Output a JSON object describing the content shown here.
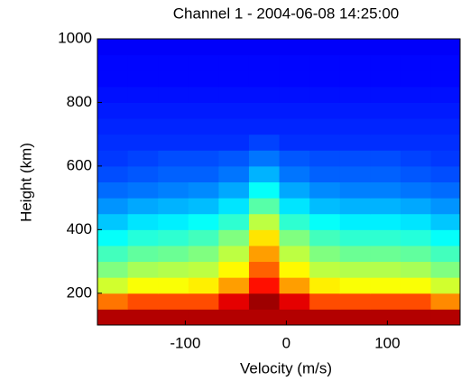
{
  "chart_data": {
    "type": "heatmap",
    "title": "Channel 1 - 2004-06-08 14:25:00",
    "x_label": "Velocity (m/s)",
    "y_label": "Height (km)",
    "xlim": [
      -187,
      172
    ],
    "ylim": [
      100,
      1000
    ],
    "xticks": [
      -100,
      0,
      100
    ],
    "yticks": [
      200,
      400,
      600,
      800,
      1000
    ],
    "colormap": "jet",
    "zlim": [
      0,
      1
    ],
    "x_bins": [
      -187,
      -157,
      -127,
      -97,
      -67,
      -37,
      -7,
      23,
      53,
      83,
      113,
      143,
      172
    ],
    "y_bins": [
      100,
      150,
      200,
      250,
      300,
      350,
      400,
      450,
      500,
      550,
      600,
      650,
      700,
      750,
      800,
      850,
      900,
      950,
      1000
    ],
    "z": [
      [
        0.95,
        0.95,
        0.95,
        0.95,
        0.95,
        0.95,
        0.95,
        0.95,
        0.95,
        0.95,
        0.95,
        0.95
      ],
      [
        0.76,
        0.8,
        0.8,
        0.8,
        0.9,
        0.97,
        0.9,
        0.8,
        0.8,
        0.8,
        0.8,
        0.74
      ],
      [
        0.58,
        0.62,
        0.62,
        0.64,
        0.72,
        0.86,
        0.72,
        0.64,
        0.62,
        0.62,
        0.62,
        0.58
      ],
      [
        0.5,
        0.54,
        0.55,
        0.56,
        0.63,
        0.78,
        0.63,
        0.56,
        0.55,
        0.55,
        0.54,
        0.5
      ],
      [
        0.44,
        0.47,
        0.48,
        0.5,
        0.56,
        0.72,
        0.56,
        0.5,
        0.48,
        0.48,
        0.47,
        0.44
      ],
      [
        0.38,
        0.41,
        0.42,
        0.44,
        0.5,
        0.65,
        0.5,
        0.44,
        0.42,
        0.42,
        0.41,
        0.38
      ],
      [
        0.32,
        0.35,
        0.36,
        0.38,
        0.42,
        0.56,
        0.42,
        0.38,
        0.36,
        0.36,
        0.35,
        0.32
      ],
      [
        0.27,
        0.29,
        0.3,
        0.31,
        0.35,
        0.46,
        0.35,
        0.31,
        0.3,
        0.3,
        0.29,
        0.27
      ],
      [
        0.23,
        0.24,
        0.25,
        0.26,
        0.29,
        0.38,
        0.29,
        0.26,
        0.25,
        0.25,
        0.24,
        0.23
      ],
      [
        0.2,
        0.21,
        0.22,
        0.22,
        0.24,
        0.3,
        0.24,
        0.22,
        0.22,
        0.22,
        0.21,
        0.2
      ],
      [
        0.18,
        0.19,
        0.2,
        0.2,
        0.21,
        0.24,
        0.21,
        0.2,
        0.2,
        0.2,
        0.19,
        0.18
      ],
      [
        0.17,
        0.17,
        0.17,
        0.17,
        0.17,
        0.19,
        0.17,
        0.17,
        0.17,
        0.17,
        0.17,
        0.17
      ],
      [
        0.16,
        0.16,
        0.16,
        0.16,
        0.16,
        0.16,
        0.16,
        0.16,
        0.16,
        0.16,
        0.16,
        0.16
      ],
      [
        0.15,
        0.15,
        0.15,
        0.15,
        0.15,
        0.15,
        0.15,
        0.15,
        0.15,
        0.15,
        0.15,
        0.15
      ],
      [
        0.14,
        0.14,
        0.14,
        0.14,
        0.14,
        0.14,
        0.14,
        0.14,
        0.14,
        0.14,
        0.14,
        0.14
      ],
      [
        0.13,
        0.13,
        0.13,
        0.13,
        0.13,
        0.13,
        0.13,
        0.13,
        0.13,
        0.13,
        0.13,
        0.13
      ],
      [
        0.13,
        0.13,
        0.13,
        0.13,
        0.13,
        0.13,
        0.13,
        0.13,
        0.13,
        0.13,
        0.13,
        0.13
      ],
      [
        0.12,
        0.12,
        0.12,
        0.12,
        0.12,
        0.12,
        0.12,
        0.12,
        0.12,
        0.12,
        0.12,
        0.12
      ]
    ]
  }
}
